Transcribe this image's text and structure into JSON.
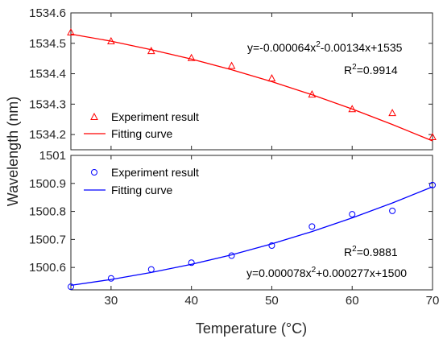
{
  "chart_data": [
    {
      "type": "scatter",
      "title": "",
      "xlabel": "Temperature (°C)",
      "ylabel": "Wavelength (nm)",
      "xlim": [
        25,
        70
      ],
      "ylim": [
        1534.15,
        1534.6
      ],
      "x_ticks": [
        "30",
        "40",
        "50",
        "60",
        "70"
      ],
      "y_ticks": [
        "1534.2",
        "1534.3",
        "1534.4",
        "1534.5",
        "1534.6"
      ],
      "grid": false,
      "legend_position": "bottom-left",
      "color": "#ff0000",
      "marker": "triangle",
      "series": [
        {
          "name": "Experiment result",
          "kind": "markers",
          "x": [
            25,
            30,
            35,
            40,
            45,
            50,
            55,
            60,
            65,
            70
          ],
          "y": [
            1534.535,
            1534.506,
            1534.474,
            1534.451,
            1534.425,
            1534.384,
            1534.331,
            1534.283,
            1534.27,
            1534.191
          ]
        },
        {
          "name": "Fitting curve",
          "kind": "line",
          "x": [
            25,
            30,
            35,
            40,
            45,
            50,
            55,
            60,
            65,
            70
          ],
          "y": [
            1534.53,
            1534.507,
            1534.479,
            1534.448,
            1534.413,
            1534.374,
            1534.331,
            1534.284,
            1534.233,
            1534.179
          ]
        }
      ],
      "annotations": {
        "equation_pre": "y=-0.000064x",
        "equation_sup": "2",
        "equation_post": "-0.00134x+1535",
        "r2_pre": "R",
        "r2_sup": "2",
        "r2_post": "=0.9914"
      }
    },
    {
      "type": "scatter",
      "title": "",
      "xlabel": "Temperature (°C)",
      "ylabel": "Wavelength (nm)",
      "xlim": [
        25,
        70
      ],
      "ylim": [
        1500.52,
        1501.0
      ],
      "x_ticks": [
        "30",
        "40",
        "50",
        "60",
        "70"
      ],
      "y_ticks": [
        "1500.6",
        "1500.7",
        "1500.8",
        "1500.9",
        "1501"
      ],
      "grid": false,
      "legend_position": "top-left",
      "color": "#0000ff",
      "marker": "circle",
      "series": [
        {
          "name": "Experiment result",
          "kind": "markers",
          "x": [
            25,
            30,
            35,
            40,
            45,
            50,
            55,
            60,
            65,
            70
          ],
          "y": [
            1500.531,
            1500.561,
            1500.593,
            1500.617,
            1500.642,
            1500.678,
            1500.746,
            1500.79,
            1500.802,
            1500.894
          ]
        },
        {
          "name": "Fitting curve",
          "kind": "line",
          "x": [
            25,
            30,
            35,
            40,
            45,
            50,
            55,
            60,
            65,
            70
          ],
          "y": [
            1500.536,
            1500.557,
            1500.582,
            1500.611,
            1500.645,
            1500.684,
            1500.728,
            1500.777,
            1500.83,
            1500.888
          ]
        }
      ],
      "annotations": {
        "r2_pre": "R",
        "r2_sup": "2",
        "r2_post": "=0.9881",
        "equation_pre": "y=0.000078x",
        "equation_sup": "2",
        "equation_post": "+0.000277x+1500"
      }
    }
  ]
}
